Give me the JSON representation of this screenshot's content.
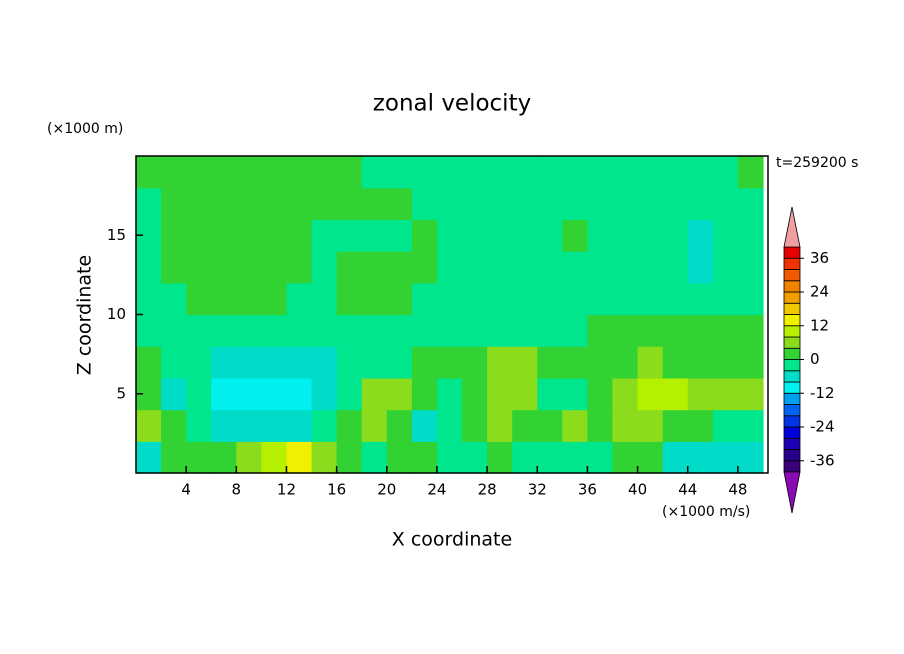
{
  "chart_data": {
    "type": "contour",
    "title": "zonal velocity",
    "x_label": "X coordinate",
    "y_label": "Z coordinate",
    "x_unit": "(×1000 m/s)",
    "y_unit": "(×1000 m)",
    "time_label": "t=259200 s",
    "xlim": [
      0,
      50.4
    ],
    "ylim": [
      0,
      20
    ],
    "xticks": [
      4,
      8,
      12,
      16,
      20,
      24,
      28,
      32,
      36,
      40,
      44,
      48
    ],
    "yticks": [
      5,
      10,
      15
    ],
    "x": [
      1,
      3,
      5,
      7,
      9,
      11,
      13,
      15,
      17,
      19,
      21,
      23,
      25,
      27,
      29,
      31,
      33,
      35,
      37,
      39,
      41,
      43,
      45,
      47,
      49
    ],
    "y": [
      1,
      3,
      5,
      7,
      9,
      11,
      13,
      15,
      17,
      19
    ],
    "z": [
      [
        -6,
        2,
        2,
        2,
        6,
        10,
        14,
        6,
        2,
        -2,
        2,
        2,
        -2,
        -2,
        2,
        -2,
        -2,
        -2,
        -2,
        2,
        2,
        -6,
        -6,
        -6,
        -6
      ],
      [
        6,
        2,
        -2,
        -6,
        -6,
        -6,
        -6,
        -2,
        2,
        6,
        2,
        -6,
        -2,
        2,
        6,
        2,
        2,
        6,
        2,
        6,
        6,
        2,
        2,
        -2,
        -2
      ],
      [
        2,
        -6,
        -2,
        -10,
        -10,
        -10,
        -10,
        -6,
        -2,
        6,
        6,
        2,
        -2,
        2,
        6,
        6,
        -2,
        -2,
        2,
        6,
        10,
        10,
        6,
        6,
        6
      ],
      [
        2,
        -2,
        -2,
        -6,
        -6,
        -6,
        -6,
        -6,
        -2,
        -2,
        -2,
        2,
        2,
        2,
        6,
        6,
        2,
        2,
        2,
        2,
        6,
        2,
        2,
        2,
        2
      ],
      [
        -2,
        -2,
        -2,
        -2,
        -2,
        -2,
        -2,
        -2,
        -2,
        -2,
        -2,
        -2,
        -2,
        -2,
        -2,
        -2,
        -2,
        -2,
        2,
        2,
        2,
        2,
        2,
        2,
        2
      ],
      [
        -2,
        -2,
        2,
        2,
        2,
        2,
        -2,
        -2,
        2,
        2,
        2,
        -2,
        -2,
        -2,
        -2,
        -2,
        -2,
        -2,
        -2,
        -2,
        -2,
        -2,
        -2,
        -2,
        -2
      ],
      [
        -2,
        2,
        2,
        2,
        2,
        2,
        2,
        -2,
        2,
        2,
        2,
        2,
        -2,
        -2,
        -2,
        -2,
        -2,
        -2,
        -2,
        -2,
        -2,
        -2,
        -6,
        -2,
        -2
      ],
      [
        -2,
        2,
        2,
        2,
        2,
        2,
        2,
        -2,
        -2,
        -2,
        -2,
        2,
        -2,
        -2,
        -2,
        -2,
        -2,
        2,
        -2,
        -2,
        -2,
        -2,
        -6,
        -2,
        -2
      ],
      [
        -2,
        2,
        2,
        2,
        2,
        2,
        2,
        2,
        2,
        2,
        2,
        -2,
        -2,
        -2,
        -2,
        -2,
        -2,
        -2,
        -2,
        -2,
        -2,
        -2,
        -2,
        -2,
        -2
      ],
      [
        2,
        2,
        2,
        2,
        2,
        2,
        2,
        2,
        2,
        -2,
        -2,
        -2,
        -2,
        -2,
        -2,
        -2,
        -2,
        -2,
        -2,
        -2,
        -2,
        -2,
        -2,
        -2,
        2
      ]
    ],
    "levels": [
      -40,
      -36,
      -32,
      -28,
      -24,
      -20,
      -16,
      -12,
      -8,
      -4,
      0,
      4,
      8,
      12,
      16,
      20,
      24,
      28,
      32,
      36,
      40
    ],
    "colors": [
      "#3c0078",
      "#28008c",
      "#1e00b4",
      "#0000dc",
      "#0032e6",
      "#0064f0",
      "#00a0f0",
      "#00f0f0",
      "#00dcc8",
      "#00e68c",
      "#32d232",
      "#8cdc1e",
      "#b4f000",
      "#f0f000",
      "#f0c800",
      "#f0a000",
      "#f08200",
      "#f05a00",
      "#f03200",
      "#e60000"
    ],
    "under_color": "#8c0ab4",
    "over_color": "#f0a0a0",
    "colorbar_ticks": [
      -36,
      -24,
      -12,
      0,
      12,
      24,
      36
    ]
  }
}
